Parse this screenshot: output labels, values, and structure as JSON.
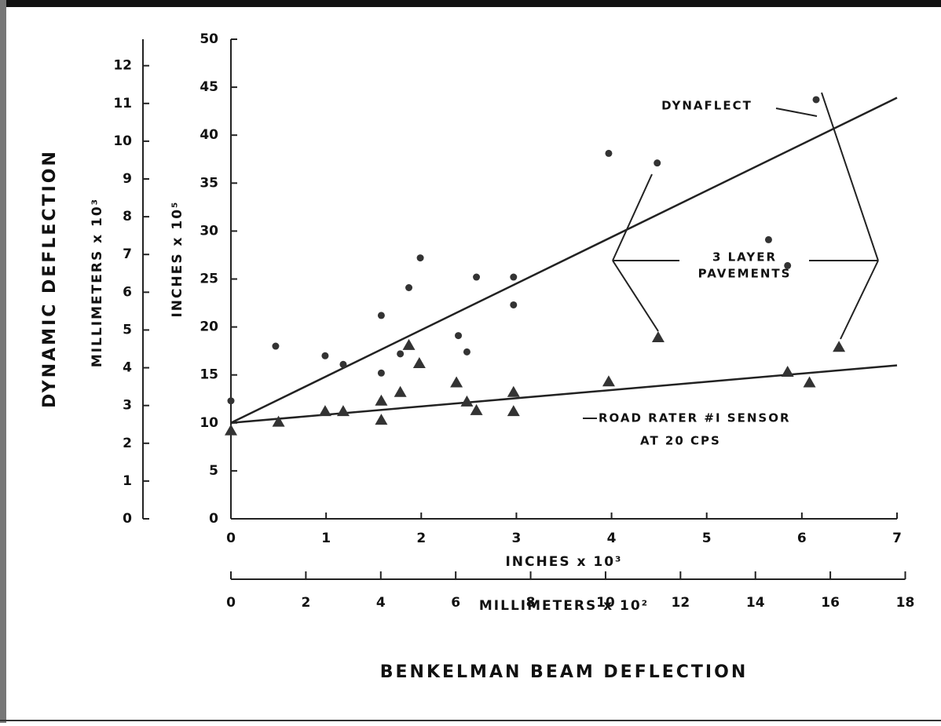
{
  "chart_data": {
    "type": "scatter",
    "y_title_outer": "DYNAMIC DEFLECTION",
    "y2_title": "MILLIMETERS x 10³",
    "y_title": "INCHES x 10⁵",
    "x_title": "INCHES x 10³",
    "x2_title": "MILLIMETERS x 10²",
    "title": "BENKELMAN BEAM DEFLECTION",
    "xlim": [
      0,
      7
    ],
    "xticks": [
      0,
      1,
      2,
      3,
      4,
      5,
      6,
      7
    ],
    "x2lim": [
      0,
      17.78
    ],
    "x2ticks": [
      0,
      2,
      4,
      6,
      8,
      10,
      12,
      14,
      16,
      18
    ],
    "ylim": [
      0,
      50
    ],
    "yticks": [
      0,
      5,
      10,
      15,
      20,
      25,
      30,
      35,
      40,
      45,
      50
    ],
    "y2lim": [
      0,
      12.7
    ],
    "y2ticks": [
      0,
      1,
      2,
      3,
      4,
      5,
      6,
      7,
      8,
      9,
      10,
      11,
      12
    ],
    "series": [
      {
        "name": "DYNAFLECT",
        "marker": "circle",
        "color": "#333333",
        "x": [
          0,
          0.47,
          0.99,
          1.18,
          1.58,
          1.58,
          1.78,
          1.87,
          1.99,
          2.39,
          2.48,
          2.58,
          2.97,
          2.97,
          3.97,
          4.48,
          5.65,
          5.85,
          6.15
        ],
        "y": [
          12.3,
          18,
          17,
          16.1,
          21.2,
          15.2,
          17.2,
          24.1,
          27.2,
          19.1,
          17.4,
          25.2,
          25.2,
          22.3,
          38.1,
          37.1,
          29.1,
          26.4,
          43.7
        ],
        "fit": {
          "x": [
            0,
            7
          ],
          "y": [
            10,
            43.9
          ]
        }
      },
      {
        "name": [
          "ROAD RATER #I SENSOR",
          "AT 20 CPS"
        ],
        "marker": "triangle",
        "color": "#333333",
        "x": [
          0,
          0.5,
          0.99,
          1.18,
          1.58,
          1.58,
          1.78,
          1.87,
          1.98,
          2.37,
          2.48,
          2.58,
          2.97,
          2.97,
          3.97,
          4.49,
          5.85,
          6.08,
          6.39
        ],
        "y": [
          9.2,
          10.1,
          11.2,
          11.2,
          12.3,
          10.3,
          13.2,
          18.1,
          16.2,
          14.2,
          12.2,
          11.3,
          13.2,
          11.2,
          14.3,
          18.9,
          15.3,
          14.2,
          17.9
        ],
        "fit": {
          "x": [
            0,
            7
          ],
          "y": [
            10,
            16
          ]
        }
      }
    ],
    "annotation": [
      "3 LAYER",
      "PAVEMENTS"
    ]
  }
}
